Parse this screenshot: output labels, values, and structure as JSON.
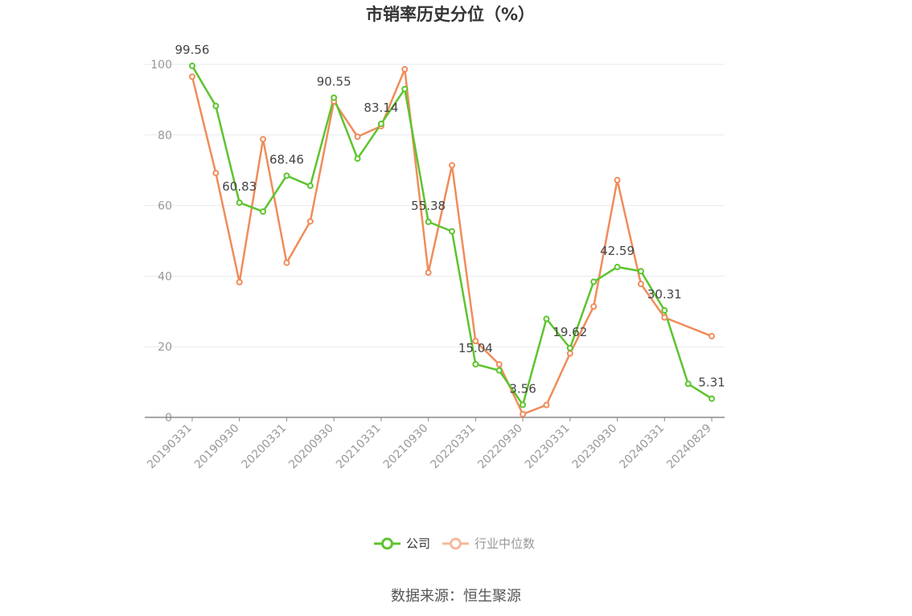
{
  "chart_data": {
    "type": "line",
    "title": "市销率历史分位（%）",
    "xlabel": "",
    "ylabel": "",
    "ylim": [
      0,
      100
    ],
    "yticks": [
      0,
      20,
      40,
      60,
      80,
      100
    ],
    "x": [
      "20190331",
      "20190630",
      "20190930",
      "20191231",
      "20200331",
      "20200630",
      "20200930",
      "20201231",
      "20210331",
      "20210630",
      "20210930",
      "20211231",
      "20220331",
      "20220630",
      "20220930",
      "20221231",
      "20230331",
      "20230630",
      "20230930",
      "20231231",
      "20240331",
      "20240630",
      "20240829"
    ],
    "xtick_labels": [
      "20190331",
      "20190930",
      "20200331",
      "20200930",
      "20210331",
      "20210930",
      "20220331",
      "20220930",
      "20230331",
      "20230930",
      "20240331",
      "20240829"
    ],
    "series": [
      {
        "name": "公司",
        "color": "#5cc42e",
        "values": [
          99.56,
          88.2,
          60.83,
          58.3,
          68.46,
          65.6,
          90.55,
          73.3,
          83.14,
          93.0,
          55.38,
          52.7,
          15.04,
          13.3,
          3.56,
          27.9,
          19.62,
          38.4,
          42.59,
          41.4,
          30.31,
          9.5,
          5.31
        ]
      },
      {
        "name": "行业中位数",
        "color": "#f08c5a",
        "values": [
          96.5,
          69.2,
          38.3,
          78.8,
          43.8,
          55.5,
          89.5,
          79.5,
          82.5,
          98.6,
          41.0,
          71.4,
          21.6,
          15.0,
          0.9,
          3.5,
          18.1,
          31.4,
          67.2,
          37.8,
          28.3,
          null,
          23.0
        ]
      }
    ],
    "data_labels": [
      {
        "index": 0,
        "text": "99.56"
      },
      {
        "index": 2,
        "text": "60.83"
      },
      {
        "index": 4,
        "text": "68.46"
      },
      {
        "index": 6,
        "text": "90.55"
      },
      {
        "index": 8,
        "text": "83.14"
      },
      {
        "index": 10,
        "text": "55.38"
      },
      {
        "index": 12,
        "text": "15.04"
      },
      {
        "index": 14,
        "text": "3.56"
      },
      {
        "index": 16,
        "text": "19.62"
      },
      {
        "index": 18,
        "text": "42.59"
      },
      {
        "index": 20,
        "text": "30.31"
      },
      {
        "index": 22,
        "text": "5.31"
      }
    ],
    "legend": {
      "position": "bottom-center",
      "inactive_color": "#f5b99b"
    },
    "grid": true
  },
  "source": "数据来源：恒生聚源"
}
